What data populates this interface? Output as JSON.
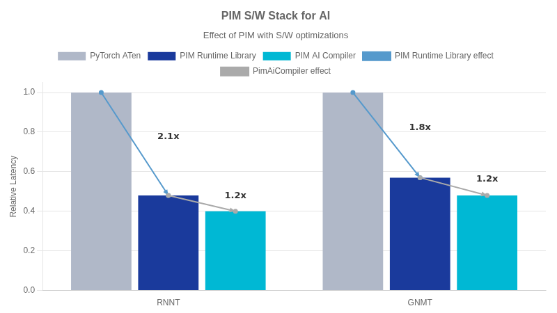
{
  "chart_data": {
    "type": "bar",
    "title": "PIM S/W Stack for AI",
    "subtitle": "Effect of PIM with S/W optimizations",
    "ylabel": "Relative Latency",
    "categories": [
      "RNNT",
      "GNMT"
    ],
    "series": [
      {
        "name": "PyTorch ATen",
        "color": "#b0b8c8",
        "values": [
          1.0,
          1.0
        ]
      },
      {
        "name": "PIM Runtime Library",
        "color": "#1a3a9c",
        "values": [
          0.48,
          0.57
        ]
      },
      {
        "name": "PIM AI Compiler",
        "color": "#00b8d4",
        "values": [
          0.4,
          0.48
        ]
      }
    ],
    "annotations": [
      {
        "name": "PIM Runtime Library effect",
        "color": "#5599cc",
        "from": "PyTorch ATen",
        "to": "PIM Runtime Library",
        "labels": [
          "2.1x",
          "1.8x"
        ]
      },
      {
        "name": "PimAiCompiler effect",
        "color": "#aaaaaa",
        "from": "PIM Runtime Library",
        "to": "PIM AI Compiler",
        "labels": [
          "1.2x",
          "1.2x"
        ]
      }
    ],
    "ylim": [
      0,
      1.05
    ],
    "yticks": [
      {
        "value": 0,
        "label": "0.0"
      },
      0.2,
      0.4,
      0.6,
      0.8,
      {
        "value": 1.0,
        "label": "1.0"
      }
    ],
    "grid": true,
    "legend": "top"
  }
}
